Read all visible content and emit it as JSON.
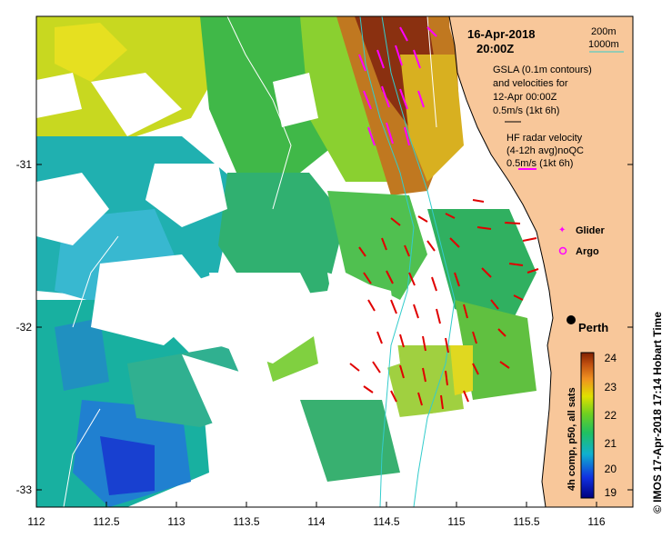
{
  "map": {
    "date_line": "16-Apr-2018",
    "time_line": "20:00Z",
    "depth_legend": [
      "200m",
      "1000m"
    ],
    "gsla_text": [
      "GSLA (0.1m contours)",
      "and velocities for",
      "12-Apr 00:00Z",
      "0.5m/s (1kt 6h)"
    ],
    "hf_text": [
      "HF radar velocity",
      "(4-12h avg)noQC",
      "0.5m/s (1kt 6h)"
    ],
    "glider_label": "Glider",
    "argo_label": "Argo",
    "city_label": "Perth",
    "side_credit": "© IMOS 17-Apr-2018 17:14 Hobart Time",
    "colorbar_title": "4h comp, p50, all sats",
    "colorbar_ticks": [
      "24",
      "23",
      "22",
      "21",
      "20",
      "19"
    ],
    "x_ticks": [
      "112",
      "112.5",
      "113",
      "113.5",
      "114",
      "114.5",
      "115",
      "115.5",
      "116"
    ],
    "y_ticks": [
      "-31",
      "-32",
      "-33"
    ],
    "colors": {
      "land": "#f8c79a",
      "radar_vector": "#e00000",
      "gsla_vector": "#ff00ff",
      "isobath": "#33cccc"
    }
  }
}
